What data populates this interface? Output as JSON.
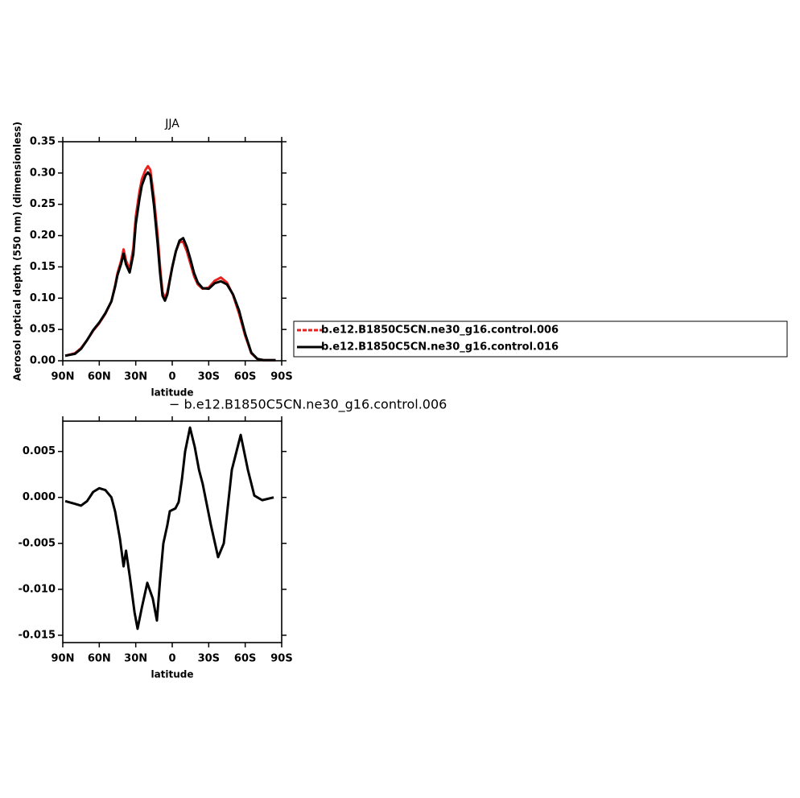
{
  "chart_data": [
    {
      "type": "line",
      "title": "JJA",
      "y_label": "Aerosol optical depth (550 nm) (dimensionless)",
      "x_label": "latitude",
      "x": [
        88,
        80,
        75,
        70,
        65,
        60,
        55,
        50,
        47,
        45,
        42,
        40,
        38,
        35,
        32,
        30,
        27,
        25,
        22,
        20,
        18,
        15,
        12,
        10,
        8,
        6,
        4,
        2,
        0,
        -3,
        -6,
        -9,
        -12,
        -15,
        -18,
        -21,
        -25,
        -30,
        -35,
        -40,
        -45,
        -50,
        -55,
        -60,
        -65,
        -70,
        -75,
        -80,
        -85
      ],
      "series": [
        {
          "name": "b.e12.B1850C5CN.ne30_g16.control.006",
          "color": "#e8231f",
          "dashed": true,
          "values": [
            0.008,
            0.012,
            0.02,
            0.033,
            0.048,
            0.06,
            0.075,
            0.095,
            0.12,
            0.14,
            0.16,
            0.178,
            0.16,
            0.146,
            0.18,
            0.23,
            0.27,
            0.29,
            0.305,
            0.311,
            0.305,
            0.26,
            0.2,
            0.15,
            0.11,
            0.1,
            0.11,
            0.13,
            0.15,
            0.175,
            0.19,
            0.19,
            0.175,
            0.155,
            0.135,
            0.122,
            0.115,
            0.117,
            0.128,
            0.133,
            0.125,
            0.105,
            0.075,
            0.04,
            0.012,
            0.003,
            0.001,
            0.001,
            0.001
          ]
        },
        {
          "name": "b.e12.B1850C5CN.ne30_g16.control.016",
          "color": "#000000",
          "values": [
            0.008,
            0.011,
            0.019,
            0.033,
            0.049,
            0.061,
            0.076,
            0.095,
            0.118,
            0.137,
            0.155,
            0.171,
            0.154,
            0.141,
            0.17,
            0.218,
            0.258,
            0.28,
            0.296,
            0.301,
            0.296,
            0.248,
            0.187,
            0.14,
            0.104,
            0.096,
            0.106,
            0.128,
            0.149,
            0.175,
            0.192,
            0.196,
            0.182,
            0.162,
            0.14,
            0.125,
            0.116,
            0.115,
            0.124,
            0.127,
            0.122,
            0.106,
            0.08,
            0.043,
            0.013,
            0.003,
            0.001,
            0.001,
            0.001
          ]
        }
      ],
      "xlim": [
        90,
        -90
      ],
      "xticks": [
        {
          "value": 90,
          "label": "90N"
        },
        {
          "value": 60,
          "label": "60N"
        },
        {
          "value": 30,
          "label": "30N"
        },
        0,
        {
          "value": -30,
          "label": "30S"
        },
        {
          "value": -60,
          "label": "60S"
        },
        {
          "value": -90,
          "label": "90S"
        }
      ],
      "ylim": [
        0,
        0.35
      ],
      "yticks": [
        {
          "value": 0,
          "label": "0.00"
        },
        0.05,
        {
          "value": 0.1,
          "label": "0.10"
        },
        0.15,
        {
          "value": 0.2,
          "label": "0.20"
        },
        0.25,
        {
          "value": 0.3,
          "label": "0.30"
        },
        0.35
      ],
      "legend": "right"
    },
    {
      "type": "line",
      "title": "− b.e12.B1850C5CN.ne30_g16.control.006",
      "x_label": "latitude",
      "x": [
        88,
        80,
        75,
        70,
        65,
        60,
        55,
        50,
        47,
        45,
        43,
        40,
        38,
        35,
        31,
        28.5,
        25,
        20.5,
        16,
        12.6,
        10,
        7.3,
        4,
        2,
        -2.6,
        -5.3,
        -8,
        -10.6,
        -14.6,
        -18.5,
        -22,
        -25,
        -31.8,
        -37.7,
        -42.4,
        -49,
        -56.3,
        -62.2,
        -67.5,
        -74,
        -83.4
      ],
      "series": [
        {
          "color": "#000000",
          "values": [
            -0.0004,
            -0.0007,
            -0.0009,
            -0.0004,
            0.0006,
            0.001,
            0.0008,
            0,
            -0.0015,
            -0.003,
            -0.0045,
            -0.0075,
            -0.0058,
            -0.0085,
            -0.0125,
            -0.0143,
            -0.012,
            -0.0093,
            -0.011,
            -0.0134,
            -0.009,
            -0.005,
            -0.003,
            -0.0015,
            -0.0012,
            -0.0005,
            0.002,
            0.005,
            0.0076,
            0.0055,
            0.003,
            0.0015,
            -0.003,
            -0.0065,
            -0.005,
            0.003,
            0.0068,
            0.003,
            0.0002,
            -0.0003,
            0
          ]
        }
      ],
      "xlim": [
        90,
        -90
      ],
      "xticks": [
        {
          "value": 90,
          "label": "90N"
        },
        {
          "value": 60,
          "label": "60N"
        },
        {
          "value": 30,
          "label": "30N"
        },
        0,
        {
          "value": -30,
          "label": "30S"
        },
        {
          "value": -60,
          "label": "60S"
        },
        {
          "value": -90,
          "label": "90S"
        }
      ],
      "ylim": [
        -0.0158,
        0.0083
      ],
      "yticks": [
        -0.015,
        {
          "value": -0.01,
          "label": "-0.010"
        },
        -0.005,
        {
          "value": 0,
          "label": "0.000"
        },
        0.005
      ]
    }
  ]
}
